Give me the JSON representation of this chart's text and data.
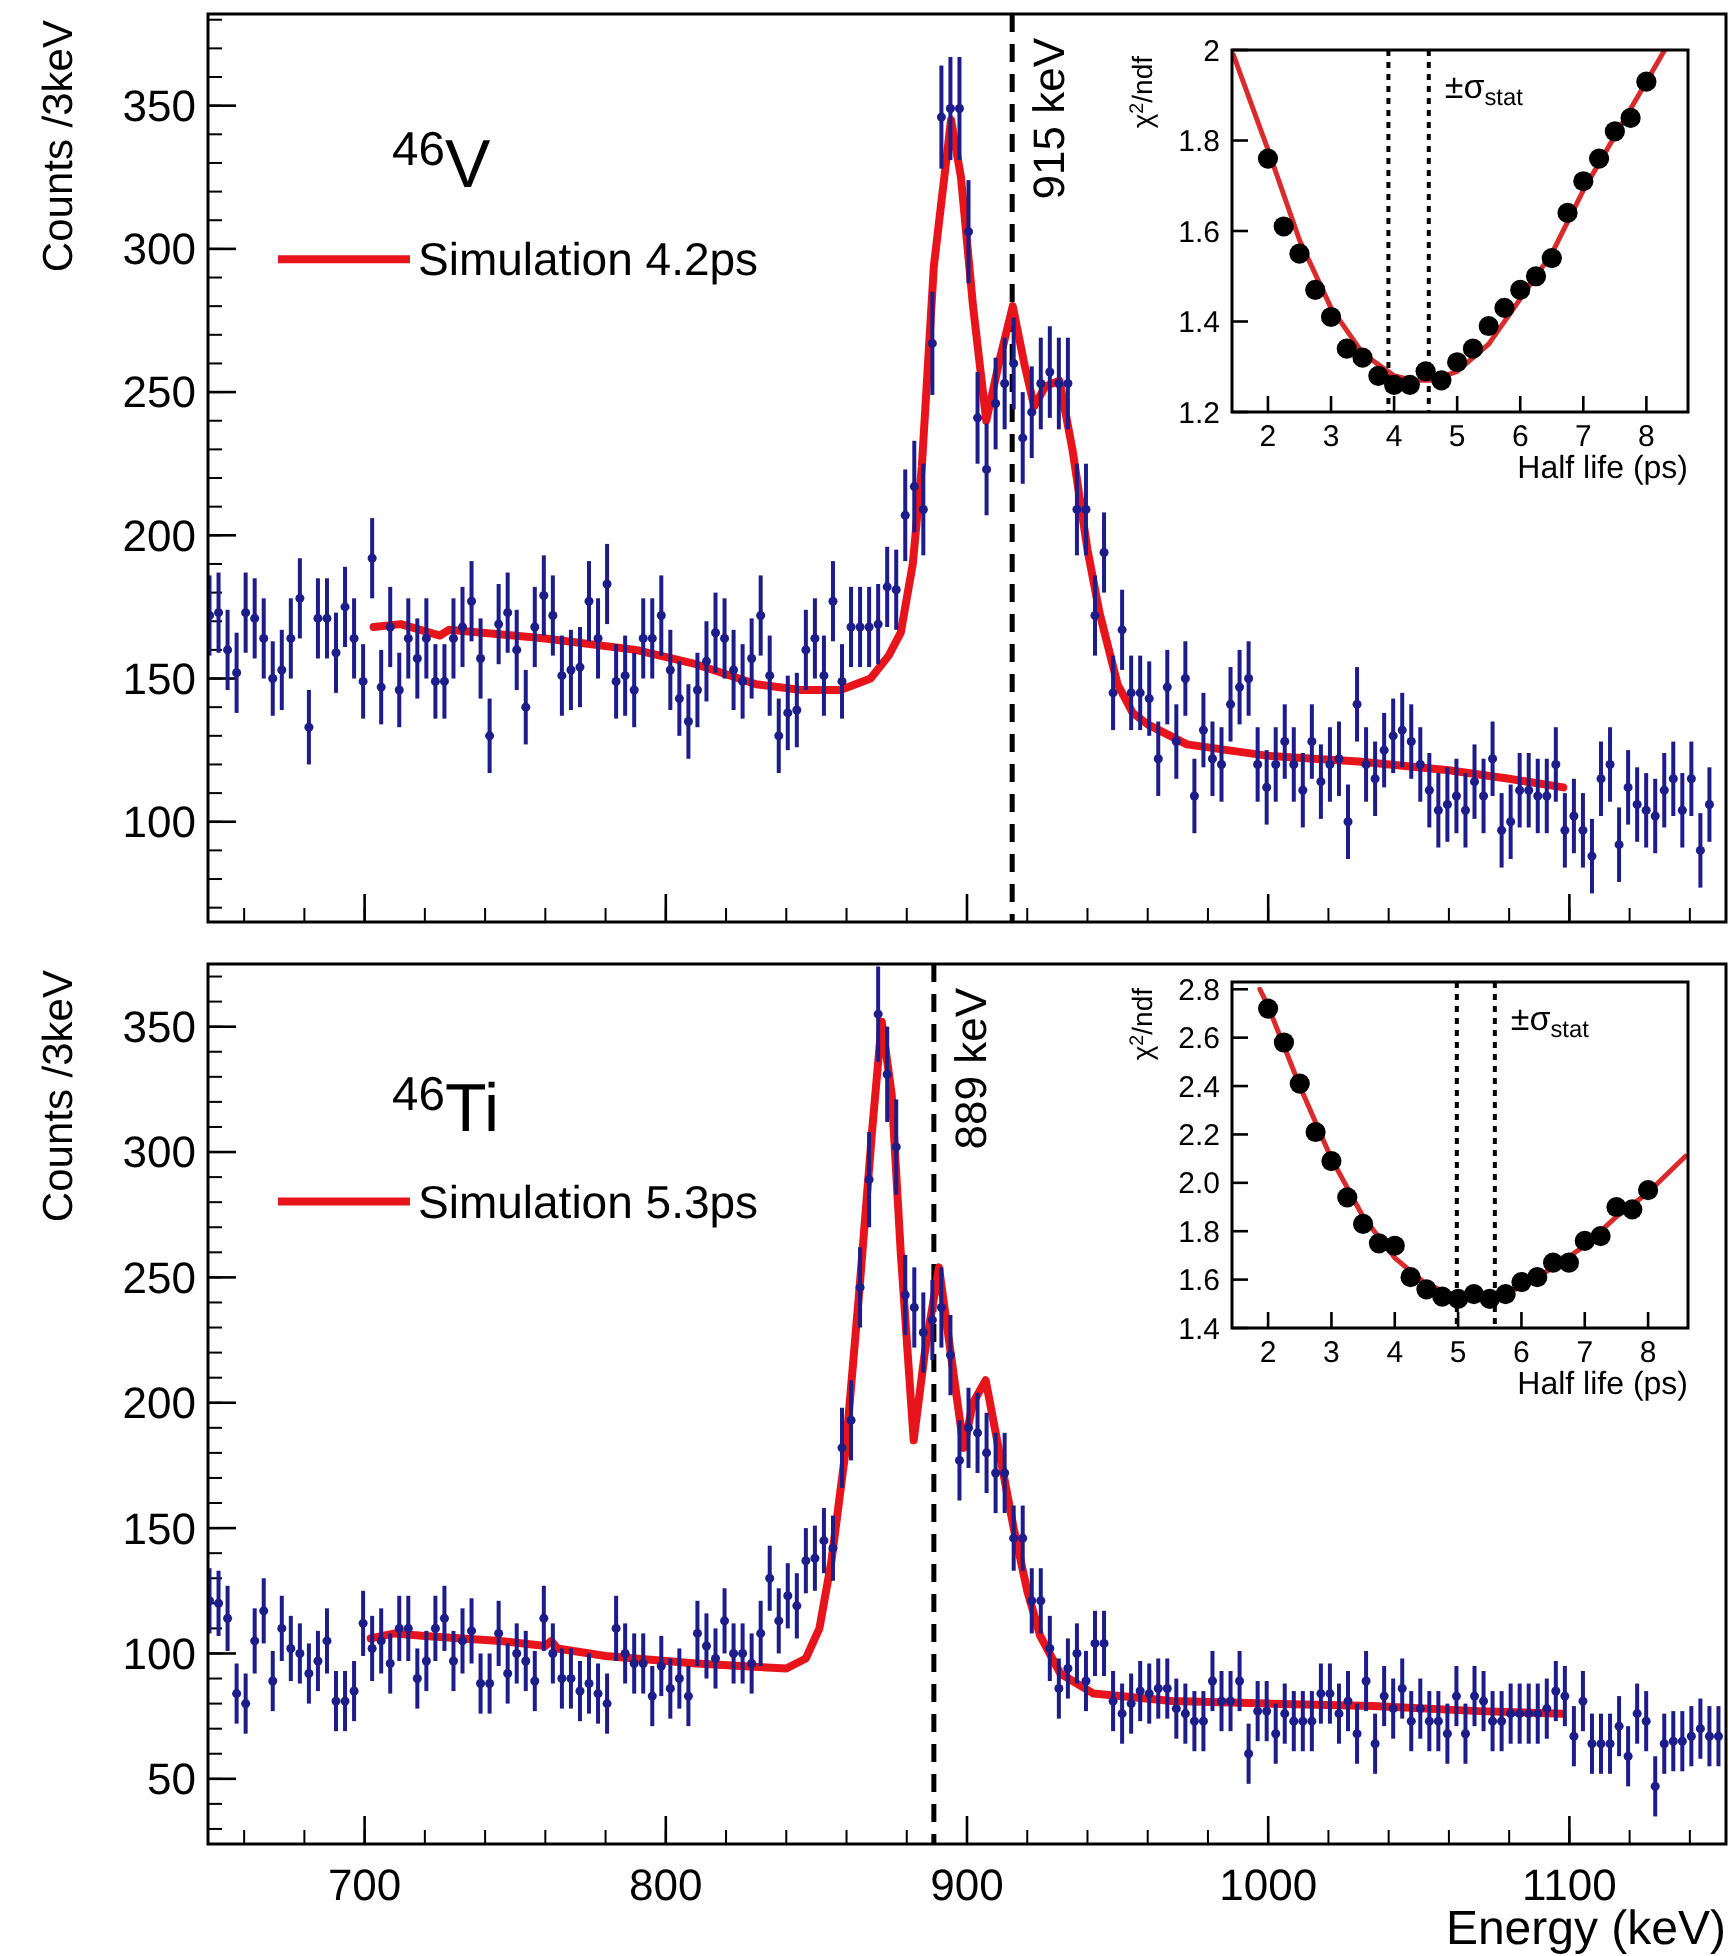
{
  "chart_data": [
    {
      "type": "scatter",
      "ylabel": "Counts /3keV",
      "annotations": [
        "$^{46}$V"
      ],
      "xlim": [
        648,
        1152
      ],
      "ylim": [
        65,
        382
      ],
      "xticks": [
        700,
        800,
        900,
        1000,
        1100
      ],
      "yticks": [
        100,
        150,
        200,
        250,
        300,
        350
      ],
      "tick_labels": "y",
      "legend": "top left",
      "ref_lines": [
        {
          "axis": "x",
          "value": 915,
          "label": "915 keV",
          "color": "#000000",
          "line_style": "dashed"
        }
      ],
      "series": [
        {
          "type": "scatter",
          "marker": "circle",
          "color": "#1c1c8a",
          "x": [
            648.5,
            651.5,
            654.5,
            657.5,
            660.5,
            663.5,
            666.5,
            669.5,
            672.5,
            675.5,
            678.5,
            681.5,
            684.5,
            687.5,
            690.5,
            693.5,
            696.5,
            699.5,
            702.5,
            705.5,
            708.5,
            711.5,
            714.5,
            717.5,
            720.5,
            723.5,
            726.5,
            729.5,
            732.5,
            735.5,
            738.5,
            741.5,
            744.5,
            747.5,
            750.5,
            753.5,
            756.5,
            759.5,
            762.5,
            765.5,
            768.5,
            771.5,
            774.5,
            777.5,
            780.5,
            783.5,
            786.5,
            789.5,
            792.5,
            795.5,
            798.5,
            801.5,
            804.5,
            807.5,
            810.5,
            813.5,
            816.5,
            819.5,
            822.5,
            825.5,
            828.5,
            831.5,
            834.5,
            837.5,
            840.5,
            843.5,
            846.5,
            849.5,
            852.5,
            855.5,
            858.5,
            861.5,
            864.5,
            867.5,
            870.5,
            873.5,
            876.5,
            879.5,
            882.5,
            885.5,
            888.5,
            891.5,
            894.5,
            897.5,
            900.5,
            903.5,
            906.5,
            909.5,
            912.5,
            915.5,
            918.5,
            921.5,
            924.5,
            927.5,
            930.5,
            933.5,
            936.5,
            939.5,
            942.5,
            945.5,
            948.5,
            951.5,
            954.5,
            957.5,
            960.5,
            963.5,
            966.5,
            969.5,
            972.5,
            975.5,
            978.5,
            981.5,
            984.5,
            987.5,
            990.5,
            993.5,
            996.5,
            999.5,
            1002.5,
            1005.5,
            1008.5,
            1011.5,
            1014.5,
            1017.5,
            1020.5,
            1023.5,
            1026.5,
            1029.5,
            1032.5,
            1035.5,
            1038.5,
            1041.5,
            1044.5,
            1047.5,
            1050.5,
            1053.5,
            1056.5,
            1059.5,
            1062.5,
            1065.5,
            1068.5,
            1071.5,
            1074.5,
            1077.5,
            1080.5,
            1083.5,
            1086.5,
            1089.5,
            1092.5,
            1095.5,
            1098.5,
            1101.5,
            1104.5,
            1107.5,
            1110.5,
            1113.5,
            1116.5,
            1119.5,
            1122.5,
            1125.5,
            1128.5,
            1131.5,
            1134.5,
            1137.5,
            1140.5,
            1143.5,
            1146.5
          ],
          "values": [
            172,
            173,
            160,
            152,
            173,
            171,
            164,
            150,
            153,
            164,
            178,
            133,
            171,
            171,
            159,
            175,
            164,
            149,
            192,
            147,
            168,
            146,
            164,
            157,
            164,
            149,
            149,
            164,
            168,
            177,
            157,
            130,
            169,
            173,
            160,
            140,
            168,
            179,
            172,
            151,
            153,
            154,
            177,
            164,
            183,
            149,
            151,
            146,
            164,
            164,
            172,
            153,
            143,
            135,
            146,
            156,
            166,
            164,
            153,
            149,
            157,
            172,
            151,
            130,
            138,
            139,
            160,
            164,
            151,
            177,
            149,
            168,
            168,
            168,
            169,
            182,
            181,
            207,
            217,
            209,
            267,
            346,
            349,
            349,
            306,
            241,
            223,
            246,
            253,
            260,
            234,
            243,
            253,
            257,
            253,
            253,
            209,
            209,
            172,
            194,
            145,
            167,
            145,
            145,
            143,
            122,
            147,
            128,
            150,
            109,
            132,
            122,
            120,
            141,
            147,
            150,
            120,
            112,
            120,
            128,
            120,
            111,
            128,
            114,
            120,
            122,
            100,
            141,
            120,
            115,
            125,
            130,
            132,
            128,
            120,
            111,
            104,
            106,
            109,
            104,
            114,
            109,
            122,
            97,
            100,
            111,
            111,
            109,
            109,
            120,
            97,
            102,
            97,
            88,
            115,
            120,
            92,
            112,
            106,
            104,
            102,
            111,
            115,
            104,
            115,
            90,
            106
          ],
          "errors": [
            14,
            14,
            14,
            14,
            14,
            14,
            14,
            13,
            14,
            14,
            14,
            13,
            14,
            14,
            14,
            14,
            14,
            13,
            14,
            13,
            14,
            13,
            14,
            14,
            14,
            13,
            13,
            14,
            14,
            14,
            14,
            13,
            14,
            14,
            14,
            13,
            14,
            14,
            14,
            14,
            14,
            14,
            14,
            14,
            14,
            13,
            14,
            13,
            14,
            14,
            14,
            14,
            13,
            13,
            13,
            14,
            14,
            14,
            14,
            13,
            14,
            14,
            14,
            13,
            13,
            13,
            14,
            14,
            14,
            14,
            13,
            14,
            14,
            14,
            14,
            14,
            14,
            16,
            16,
            16,
            18,
            18,
            18,
            18,
            18,
            16,
            16,
            16,
            16,
            16,
            16,
            16,
            16,
            16,
            16,
            16,
            16,
            16,
            14,
            14,
            13,
            14,
            13,
            13,
            13,
            13,
            13,
            13,
            13,
            13,
            13,
            13,
            13,
            13,
            13,
            13,
            13,
            13,
            13,
            13,
            13,
            13,
            13,
            13,
            13,
            13,
            13,
            13,
            13,
            13,
            13,
            13,
            13,
            13,
            13,
            13,
            13,
            13,
            13,
            13,
            13,
            13,
            13,
            13,
            13,
            13,
            13,
            13,
            13,
            13,
            13,
            13,
            13,
            13,
            13,
            13,
            13,
            13,
            13,
            13,
            13,
            13,
            13,
            13,
            13,
            13,
            13
          ]
        },
        {
          "type": "line",
          "marker": "none",
          "name": "Simulation 4.2ps",
          "color": "#e8141b",
          "x": [
            703,
            712,
            725,
            728,
            760,
            790,
            810,
            830,
            845,
            858,
            868,
            874,
            878,
            882,
            885,
            889,
            894.7,
            898,
            902,
            906.4,
            911,
            915.2,
            919,
            922.3,
            926,
            930.7,
            935,
            940,
            944,
            950,
            955,
            960,
            973,
            1000,
            1030,
            1060,
            1080,
            1098
          ],
          "values": [
            168,
            169,
            165,
            167,
            164,
            160,
            155,
            148,
            146,
            146,
            150,
            158,
            166,
            190,
            224,
            294,
            345,
            325,
            280,
            240,
            262,
            280,
            260,
            245,
            252,
            254,
            230,
            195,
            173,
            148,
            138,
            134,
            127,
            123,
            121,
            118,
            115,
            112
          ]
        }
      ]
    },
    {
      "type": "scatter",
      "xlabel": "Half life (ps)",
      "ylabel": "χ$^{2}$/ndf",
      "annotations": [
        "±σ$_{stat}$"
      ],
      "xlim": [
        1.43,
        8.66
      ],
      "ylim": [
        1.2,
        2
      ],
      "xticks": [
        2,
        3,
        4,
        5,
        6,
        7,
        8
      ],
      "yticks": [
        1.2,
        1.4,
        1.6,
        1.8,
        2
      ],
      "ref_lines": [
        {
          "axis": "x",
          "value": 3.91,
          "color": "#000000",
          "line_style": "dotted"
        },
        {
          "axis": "x",
          "value": 4.55,
          "color": "#000000",
          "line_style": "dotted"
        }
      ],
      "series": [
        {
          "type": "scatter",
          "marker": "circle",
          "color": "#000000",
          "x": [
            2,
            2.25,
            2.5,
            2.75,
            3,
            3.25,
            3.5,
            3.75,
            4,
            4.25,
            4.5,
            4.75,
            5,
            5.25,
            5.5,
            5.75,
            6,
            6.25,
            6.5,
            6.75,
            7,
            7.25,
            7.5,
            7.75,
            8
          ],
          "values": [
            1.76,
            1.61,
            1.55,
            1.47,
            1.41,
            1.34,
            1.32,
            1.28,
            1.26,
            1.26,
            1.29,
            1.27,
            1.31,
            1.34,
            1.39,
            1.43,
            1.47,
            1.5,
            1.54,
            1.64,
            1.71,
            1.76,
            1.82,
            1.85,
            1.93
          ]
        },
        {
          "type": "line",
          "marker": "none",
          "color": "#d92b2b",
          "x": [
            1.45,
            2,
            2.5,
            3,
            3.5,
            4,
            4.3,
            4.6,
            5,
            5.5,
            6,
            6.5,
            7,
            7.5,
            8,
            8.29
          ],
          "values": [
            1.99,
            1.78,
            1.58,
            1.43,
            1.33,
            1.28,
            1.27,
            1.27,
            1.29,
            1.35,
            1.45,
            1.55,
            1.69,
            1.81,
            1.93,
            2
          ]
        }
      ]
    },
    {
      "type": "scatter",
      "xlabel": "Energy (keV)",
      "ylabel": "Counts /3keV",
      "annotations": [
        "$^{46}$Ti"
      ],
      "xlim": [
        648,
        1152
      ],
      "ylim": [
        24,
        375
      ],
      "xticks": [
        700,
        800,
        900,
        1000,
        1100
      ],
      "yticks": [
        50,
        100,
        150,
        200,
        250,
        300,
        350
      ],
      "legend": "top left",
      "ref_lines": [
        {
          "axis": "x",
          "value": 889,
          "label": "889 keV",
          "color": "#000000",
          "line_style": "dashed"
        }
      ],
      "series": [
        {
          "type": "scatter",
          "marker": "circle",
          "color": "#1c1c8a",
          "x": [
            648.5,
            651.5,
            654.5,
            657.5,
            660.5,
            663.5,
            666.5,
            669.5,
            672.5,
            675.5,
            678.5,
            681.5,
            684.5,
            687.5,
            690.5,
            693.5,
            696.5,
            699.5,
            702.5,
            705.5,
            708.5,
            711.5,
            714.5,
            717.5,
            720.5,
            723.5,
            726.5,
            729.5,
            732.5,
            735.5,
            738.5,
            741.5,
            744.5,
            747.5,
            750.5,
            753.5,
            756.5,
            759.5,
            762.5,
            765.5,
            768.5,
            771.5,
            774.5,
            777.5,
            780.5,
            783.5,
            786.5,
            789.5,
            792.5,
            795.5,
            798.5,
            801.5,
            804.5,
            807.5,
            810.5,
            813.5,
            816.5,
            819.5,
            822.5,
            825.5,
            828.5,
            831.5,
            834.5,
            837.5,
            840.5,
            843.5,
            846.5,
            849.5,
            852.5,
            855.5,
            858.5,
            861.5,
            864.5,
            867.5,
            870.5,
            873.5,
            876.5,
            879.5,
            882.5,
            885.5,
            888.5,
            891.5,
            894.5,
            897.5,
            900.5,
            903.5,
            906.5,
            909.5,
            912.5,
            915.5,
            918.5,
            921.5,
            924.5,
            927.5,
            930.5,
            933.5,
            936.5,
            939.5,
            942.5,
            945.5,
            948.5,
            951.5,
            954.5,
            957.5,
            960.5,
            963.5,
            966.5,
            969.5,
            972.5,
            975.5,
            978.5,
            981.5,
            984.5,
            987.5,
            990.5,
            993.5,
            996.5,
            999.5,
            1002.5,
            1005.5,
            1008.5,
            1011.5,
            1014.5,
            1017.5,
            1020.5,
            1023.5,
            1026.5,
            1029.5,
            1032.5,
            1035.5,
            1038.5,
            1041.5,
            1044.5,
            1047.5,
            1050.5,
            1053.5,
            1056.5,
            1059.5,
            1062.5,
            1065.5,
            1068.5,
            1071.5,
            1074.5,
            1077.5,
            1080.5,
            1083.5,
            1086.5,
            1089.5,
            1092.5,
            1095.5,
            1098.5,
            1101.5,
            1104.5,
            1107.5,
            1110.5,
            1113.5,
            1116.5,
            1119.5,
            1122.5,
            1125.5,
            1128.5,
            1131.5,
            1134.5,
            1137.5,
            1140.5,
            1143.5,
            1146.5,
            1149.5
          ],
          "values": [
            121,
            120,
            114,
            84,
            80,
            105,
            117,
            89,
            110,
            102,
            100,
            92,
            97,
            105,
            81,
            81,
            85,
            112,
            102,
            105,
            96,
            110,
            110,
            90,
            97,
            110,
            114,
            97,
            105,
            109,
            88,
            88,
            108,
            92,
            100,
            97,
            89,
            114,
            100,
            90,
            90,
            85,
            88,
            84,
            80,
            110,
            100,
            96,
            96,
            83,
            95,
            86,
            90,
            83,
            108,
            103,
            98,
            113,
            100,
            100,
            96,
            108,
            130,
            113,
            123,
            119,
            137,
            138,
            145,
            142,
            182,
            193,
            246,
            289,
            355,
            331,
            302,
            243,
            238,
            228,
            233,
            238,
            219,
            177,
            190,
            188,
            180,
            172,
            172,
            146,
            146,
            121,
            121,
            102,
            86,
            94,
            100,
            89,
            104,
            104,
            81,
            76,
            80,
            85,
            84,
            86,
            86,
            78,
            76,
            73,
            73,
            89,
            81,
            81,
            89,
            60,
            77,
            77,
            68,
            76,
            73,
            73,
            73,
            84,
            84,
            76,
            81,
            68,
            89,
            64,
            83,
            78,
            86,
            73,
            78,
            73,
            73,
            68,
            83,
            68,
            83,
            81,
            73,
            73,
            76,
            76,
            76,
            76,
            78,
            85,
            83,
            67,
            81,
            64,
            64,
            64,
            71,
            59,
            76,
            73,
            47,
            64,
            65,
            65,
            67,
            70,
            67,
            67
          ],
          "errors": [
            13,
            13,
            13,
            12,
            12,
            13,
            13,
            12,
            13,
            13,
            12,
            12,
            12,
            13,
            12,
            12,
            12,
            13,
            13,
            13,
            12,
            13,
            13,
            12,
            12,
            13,
            13,
            12,
            13,
            13,
            12,
            12,
            13,
            12,
            12,
            12,
            12,
            13,
            12,
            12,
            12,
            12,
            12,
            12,
            12,
            13,
            12,
            12,
            12,
            12,
            12,
            12,
            12,
            12,
            13,
            13,
            12,
            13,
            12,
            12,
            12,
            13,
            13,
            13,
            13,
            13,
            13,
            13,
            13,
            13,
            16,
            16,
            16,
            19,
            19,
            19,
            19,
            16,
            16,
            16,
            16,
            16,
            16,
            16,
            16,
            16,
            16,
            16,
            16,
            13,
            13,
            13,
            13,
            13,
            12,
            12,
            12,
            12,
            13,
            13,
            12,
            12,
            12,
            12,
            12,
            12,
            12,
            12,
            12,
            12,
            12,
            12,
            12,
            12,
            12,
            12,
            12,
            12,
            12,
            12,
            12,
            12,
            12,
            12,
            12,
            12,
            12,
            12,
            12,
            12,
            12,
            12,
            12,
            12,
            12,
            12,
            12,
            12,
            12,
            12,
            12,
            12,
            12,
            12,
            12,
            12,
            12,
            12,
            12,
            12,
            12,
            12,
            12,
            12,
            12,
            12,
            12,
            12,
            12,
            12,
            12,
            12,
            12,
            12,
            12,
            12,
            12,
            12
          ]
        },
        {
          "type": "line",
          "marker": "none",
          "name": "Simulation 5.3ps",
          "color": "#e8141b",
          "x": [
            702,
            710,
            720,
            745,
            760,
            762,
            764,
            780,
            790,
            800,
            810,
            825,
            840,
            846.5,
            851,
            855,
            859.7,
            864.2,
            868.6,
            871.7,
            875,
            878,
            882.3,
            886,
            890.7,
            894,
            898.9,
            902,
            906.2,
            910,
            915.5,
            920,
            924.3,
            931,
            942,
            968,
            1000,
            1034.7,
            1070,
            1097.6
          ],
          "values": [
            106,
            108,
            107,
            105,
            103,
            105,
            102,
            99,
            98,
            97,
            96,
            95,
            94,
            98,
            110,
            137,
            181,
            244,
            310,
            352,
            323,
            260,
            185,
            220,
            254,
            225,
            182,
            200,
            209,
            185,
            150,
            125,
            107,
            92,
            84,
            81,
            80,
            79,
            77,
            76
          ]
        }
      ]
    },
    {
      "type": "scatter",
      "xlabel": "Half life (ps)",
      "ylabel": "χ$^{2}$/ndf",
      "annotations": [
        "±σ$_{stat}$"
      ],
      "xlim": [
        1.43,
        8.63
      ],
      "ylim": [
        1.4,
        2.83
      ],
      "xticks": [
        2,
        3,
        4,
        5,
        6,
        7,
        8
      ],
      "yticks": [
        1.4,
        1.6,
        1.8,
        {
          "value": 2,
          "label": "2.0"
        },
        2.2,
        2.4,
        2.6,
        2.8
      ],
      "ref_lines": [
        {
          "axis": "x",
          "value": 4.98,
          "color": "#000000",
          "line_style": "dotted"
        },
        {
          "axis": "x",
          "value": 5.58,
          "color": "#000000",
          "line_style": "dotted"
        }
      ],
      "series": [
        {
          "type": "scatter",
          "marker": "circle",
          "color": "#000000",
          "x": [
            2,
            2.25,
            2.5,
            2.75,
            3,
            3.25,
            3.5,
            3.75,
            4,
            4.25,
            4.5,
            4.75,
            5,
            5.25,
            5.5,
            5.75,
            6,
            6.25,
            6.5,
            6.75,
            7,
            7.25,
            7.5,
            7.75,
            8
          ],
          "values": [
            2.72,
            2.58,
            2.41,
            2.21,
            2.09,
            1.94,
            1.83,
            1.75,
            1.74,
            1.61,
            1.56,
            1.53,
            1.52,
            1.54,
            1.52,
            1.54,
            1.59,
            1.61,
            1.67,
            1.67,
            1.76,
            1.78,
            1.9,
            1.89,
            1.97
          ]
        },
        {
          "type": "line",
          "marker": "none",
          "color": "#d92b2b",
          "x": [
            1.87,
            2,
            2.5,
            3,
            3.5,
            4,
            4.5,
            5,
            5.3,
            5.6,
            6,
            6.5,
            7,
            7.5,
            8,
            8.59
          ],
          "values": [
            2.8,
            2.73,
            2.4,
            2.1,
            1.86,
            1.69,
            1.58,
            1.53,
            1.52,
            1.53,
            1.57,
            1.65,
            1.74,
            1.86,
            1.96,
            2.11
          ]
        }
      ]
    }
  ]
}
